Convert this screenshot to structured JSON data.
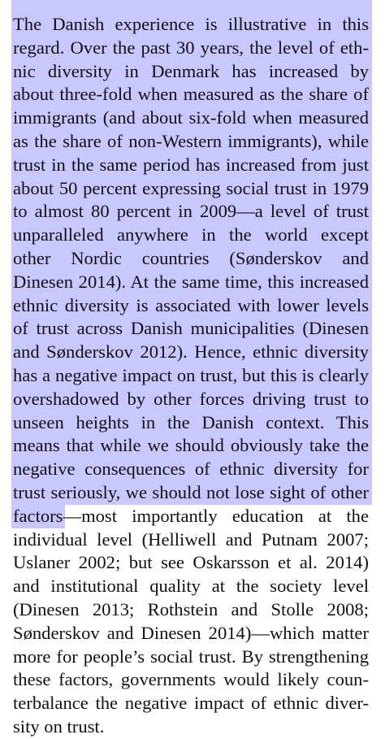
{
  "lines": [
    "The Danish experience is illustrative in this",
    "regard. Over the past 30 years, the level of eth-",
    "nic diversity in Denmark has increased by",
    "about three-fold when measured as the share of",
    "immigrants (and about six-fold when measured",
    "as the share of non-Western immigrants), while",
    "trust in the same period has increased from just",
    "about 50 percent expressing social trust in 1979",
    "to almost 80 percent in 2009—a level of trust",
    "unparalleled anywhere in the world except",
    "other Nordic countries (Sønderskov and",
    "Dinesen 2014). At the same time, this increased",
    "ethnic diversity is associated with lower levels",
    "of trust across Danish municipalities (Dinesen",
    "and Sønderskov 2012). Hence, ethnic diversity",
    "has a negative impact on trust, but this is clearly",
    "overshadowed by other forces driving trust to",
    "unseen heights in the Danish context. This",
    "means that while we should obviously take the",
    "negative consequences of ethnic diversity for",
    "trust seriously, we should not lose sight of other",
    "factors—most importantly education at the",
    "individual level (Helliwell and Putnam 2007;",
    "Uslaner 2002; but see Oskarsson et al. 2014)",
    "and institutional quality at the society level",
    "(Dinesen 2013; Rothstein and Stolle 2008;",
    "Sønderskov and Dinesen 2014)—which matter",
    "more for people’s social trust. By strengthening",
    "these factors, governments would likely coun-",
    "terbalance the negative impact of ethnic diver-",
    "sity on trust."
  ],
  "highlight": {
    "color": "#c8c8ff",
    "full_lines": 21,
    "partial_line_index": 21,
    "partial_text": "factors"
  }
}
